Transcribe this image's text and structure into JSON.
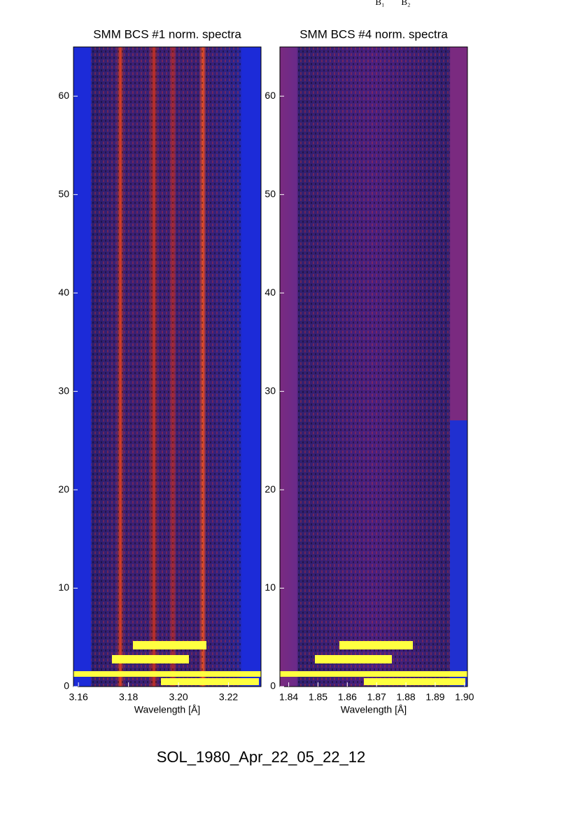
{
  "header_labels": [
    "B₁",
    "B₂"
  ],
  "footer": "SOL_1980_Apr_22_05_22_12",
  "chart_data": [
    {
      "type": "spectrogram",
      "title": "SMM BCS #1 norm. spectra",
      "xlabel": "Wavelength [Å]",
      "xlim": [
        3.158,
        3.233
      ],
      "xticks": [
        3.16,
        3.18,
        {
          "value": 3.2,
          "label": "3.20"
        },
        3.22
      ],
      "ylim": [
        0,
        65
      ],
      "yticks": [
        0,
        10,
        20,
        30,
        40,
        50,
        60
      ]
    },
    {
      "type": "spectrogram",
      "title": "SMM BCS #4 norm. spectra",
      "xlabel": "Wavelength [Å]",
      "xlim": [
        1.837,
        1.901
      ],
      "xticks": [
        1.84,
        1.85,
        1.86,
        1.87,
        1.88,
        1.89,
        {
          "value": 1.9,
          "label": "1.90"
        }
      ],
      "ylim": [
        0,
        65
      ],
      "yticks": [
        0,
        10,
        20,
        30,
        40,
        50,
        60
      ]
    }
  ]
}
